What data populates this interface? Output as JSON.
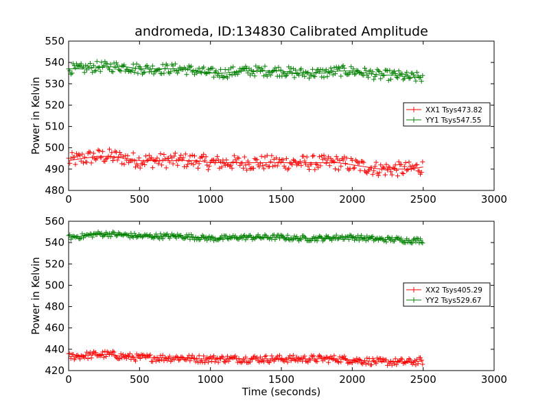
{
  "chart_data": [
    {
      "type": "scatter",
      "title": "andromeda, ID:134830 Calibrated Amplitude",
      "xlabel": "",
      "ylabel": "Power in Kelvin",
      "xlim": [
        0,
        3000
      ],
      "ylim": [
        480,
        550
      ],
      "xticks": [
        0,
        500,
        1000,
        1500,
        2000,
        2500,
        3000
      ],
      "yticks": [
        480,
        490,
        500,
        510,
        520,
        530,
        540,
        550
      ],
      "grid": false,
      "legend_position": "right",
      "marker": "+",
      "series": [
        {
          "name": "XX1 Tsys473.82",
          "color": "#ff0000",
          "x": [
            0,
            100,
            200,
            300,
            400,
            500,
            600,
            700,
            800,
            900,
            1000,
            1100,
            1200,
            1300,
            1400,
            1500,
            1600,
            1700,
            1800,
            1900,
            2000,
            2100,
            2200,
            2300,
            2400,
            2500
          ],
          "y": [
            494,
            495,
            496,
            496,
            495,
            494,
            494,
            494,
            494,
            494,
            493,
            493,
            493,
            493,
            493,
            493,
            493,
            493,
            493,
            493,
            492,
            491,
            490,
            490,
            490,
            491
          ],
          "spread": 3.5
        },
        {
          "name": "YY1 Tsys547.55",
          "color": "#008000",
          "x": [
            0,
            100,
            200,
            300,
            400,
            500,
            600,
            700,
            800,
            900,
            1000,
            1100,
            1200,
            1300,
            1400,
            1500,
            1600,
            1700,
            1800,
            1900,
            2000,
            2100,
            2200,
            2300,
            2400,
            2500
          ],
          "y": [
            537,
            537,
            538,
            538,
            538,
            537,
            537,
            537,
            537,
            536,
            535,
            535,
            536,
            536,
            536,
            536,
            535,
            535,
            535,
            536,
            536,
            535,
            534,
            534,
            533,
            533
          ],
          "spread": 2.5
        }
      ]
    },
    {
      "type": "scatter",
      "title": "",
      "xlabel": "Time (seconds)",
      "ylabel": "Power in Kelvin",
      "xlim": [
        0,
        3000
      ],
      "ylim": [
        420,
        560
      ],
      "xticks": [
        0,
        500,
        1000,
        1500,
        2000,
        2500,
        3000
      ],
      "yticks": [
        420,
        440,
        460,
        480,
        500,
        520,
        540,
        560
      ],
      "grid": false,
      "legend_position": "right",
      "marker": "+",
      "series": [
        {
          "name": "XX2 Tsys405.29",
          "color": "#ff0000",
          "x": [
            0,
            100,
            200,
            300,
            400,
            500,
            600,
            700,
            800,
            900,
            1000,
            1100,
            1200,
            1300,
            1400,
            1500,
            1600,
            1700,
            1800,
            1900,
            2000,
            2100,
            2200,
            2300,
            2400,
            2500
          ],
          "y": [
            433,
            434,
            435,
            435,
            433,
            432,
            432,
            432,
            432,
            431,
            431,
            431,
            431,
            431,
            431,
            431,
            431,
            431,
            431,
            431,
            430,
            429,
            428,
            428,
            428,
            429
          ],
          "spread": 3.5
        },
        {
          "name": "YY2 Tsys529.67",
          "color": "#008000",
          "x": [
            0,
            100,
            200,
            300,
            400,
            500,
            600,
            700,
            800,
            900,
            1000,
            1100,
            1200,
            1300,
            1400,
            1500,
            1600,
            1700,
            1800,
            1900,
            2000,
            2100,
            2200,
            2300,
            2400,
            2500
          ],
          "y": [
            545,
            546,
            548,
            548,
            547,
            546,
            546,
            546,
            546,
            545,
            544,
            544,
            545,
            545,
            545,
            545,
            544,
            544,
            544,
            545,
            545,
            544,
            543,
            543,
            542,
            542
          ],
          "spread": 2.5
        }
      ]
    }
  ]
}
